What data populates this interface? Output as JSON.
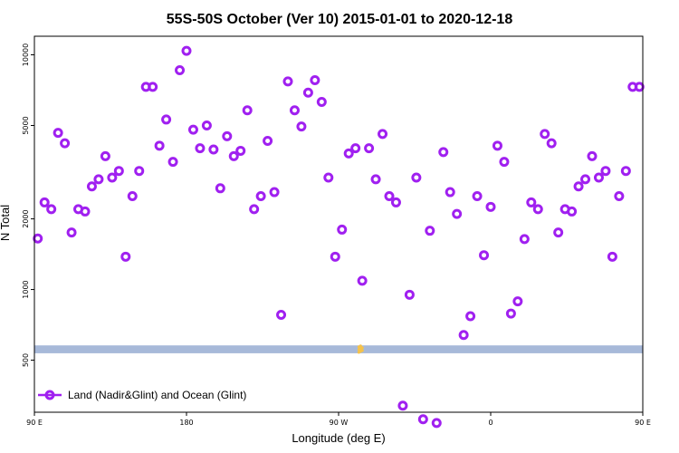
{
  "chart_data": {
    "type": "scatter",
    "title": "55S-50S October (Ver 10)   2015-01-01 to 2020-12-18",
    "xlabel": "Longitude (deg E)",
    "ylabel": "N Total",
    "xlim": [
      90,
      450
    ],
    "ylim": [
      300,
      12000
    ],
    "y_scale": "log",
    "x_ticks": [
      {
        "value": 90,
        "label": "90 E"
      },
      {
        "value": 180,
        "label": "180"
      },
      {
        "value": 270,
        "label": "90 W"
      },
      {
        "value": 360,
        "label": "0"
      },
      {
        "value": 450,
        "label": "90 E"
      }
    ],
    "y_ticks": [
      {
        "value": 500,
        "label": "500"
      },
      {
        "value": 1000,
        "label": "1000"
      },
      {
        "value": 2000,
        "label": "2000"
      },
      {
        "value": 5000,
        "label": "5000"
      },
      {
        "value": 10000,
        "label": "10000"
      }
    ],
    "grid": false,
    "legend_position": "bottom-left",
    "series": [
      {
        "name": "Land (Nadir&Glint) and Ocean (Glint)",
        "color": "#a020f0",
        "marker": "circle",
        "x": [
          92,
          96,
          100,
          104,
          108,
          112,
          116,
          120,
          124,
          128,
          132,
          136,
          140,
          144,
          148,
          152,
          156,
          160,
          164,
          168,
          172,
          176,
          180,
          184,
          188,
          192,
          196,
          200,
          204,
          208,
          212,
          216,
          220,
          224,
          228,
          232,
          236,
          240,
          244,
          248,
          252,
          256,
          260,
          264,
          268,
          272,
          276,
          280,
          284,
          288,
          292,
          296,
          300,
          304,
          308,
          312,
          316,
          320,
          324,
          328,
          332,
          336,
          340,
          344,
          348,
          352,
          356,
          360,
          364,
          368,
          372,
          376,
          380,
          384,
          388,
          392,
          396,
          400,
          404,
          408,
          412,
          416,
          420,
          424,
          428,
          432,
          436,
          440,
          444,
          448
        ],
        "y": [
          1650,
          2350,
          2200,
          4650,
          4200,
          1750,
          2200,
          2150,
          2750,
          2950,
          3700,
          3000,
          3200,
          1380,
          2500,
          3200,
          7300,
          7300,
          4100,
          5300,
          3500,
          8600,
          10400,
          4800,
          4000,
          5000,
          3950,
          2700,
          4500,
          3700,
          3900,
          5800,
          2200,
          2500,
          4300,
          2600,
          780,
          7700,
          5800,
          4950,
          6900,
          7800,
          6300,
          3000,
          1380,
          1800,
          3800,
          4000,
          1090,
          4000,
          2950,
          4600,
          2500,
          2350,
          320,
          950,
          3000,
          280,
          1780,
          270,
          3850,
          2600,
          2100,
          640,
          770,
          2500,
          1400,
          2250,
          4100,
          3500,
          790,
          890,
          1640,
          2350,
          2200,
          4600,
          4200,
          1750,
          2200,
          2150,
          2750,
          2950,
          3700,
          3000,
          3200,
          1380,
          2500,
          3200,
          7300,
          7300
        ]
      }
    ],
    "overlays": [
      {
        "type": "band",
        "color": "#a7b9d9",
        "y_range": [
          535,
          578
        ],
        "x_range": [
          90,
          450
        ]
      },
      {
        "type": "scatter-cluster",
        "color": "#f5c24a",
        "x_range": [
          282,
          284
        ],
        "y_range": [
          540,
          575
        ]
      }
    ]
  }
}
